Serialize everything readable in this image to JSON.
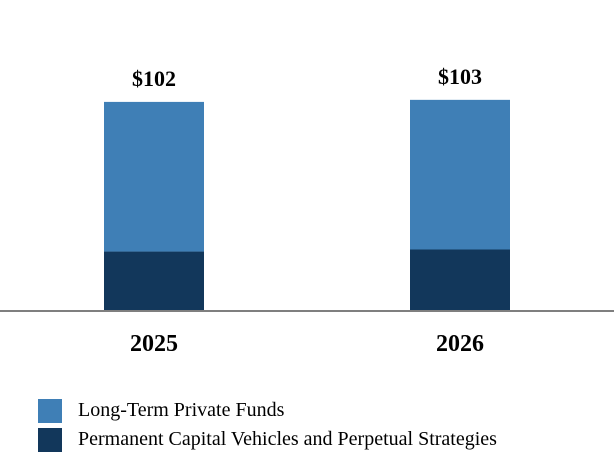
{
  "chart_data": {
    "type": "bar",
    "stacked": true,
    "categories": [
      "2025",
      "2026"
    ],
    "totals": [
      102,
      103
    ],
    "total_labels": [
      "$102",
      "$103"
    ],
    "series": [
      {
        "name": "Permanent Capital Vehicles and Perpetual Strategies",
        "values": [
          29,
          30
        ],
        "color": "#12375b"
      },
      {
        "name": "Long-Term Private Funds",
        "values": [
          73,
          73
        ],
        "color": "#3f7fb6"
      }
    ],
    "ylim": [
      0,
      110
    ],
    "grid": false,
    "legend_position": "bottom"
  },
  "legend": {
    "items": [
      {
        "label": "Long-Term Private Funds",
        "color": "#3f7fb6"
      },
      {
        "label": "Permanent Capital Vehicles and Perpetual Strategies",
        "color": "#12375b"
      }
    ]
  }
}
